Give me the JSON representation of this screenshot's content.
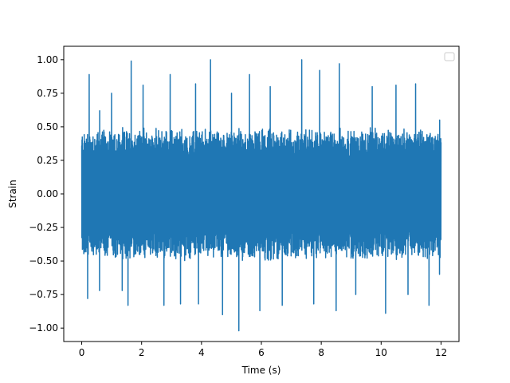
{
  "chart_data": {
    "type": "line",
    "title": "",
    "xlabel": "Time (s)",
    "ylabel": "Strain",
    "xlim": [
      -0.6,
      12.6
    ],
    "ylim": [
      -1.1,
      1.1
    ],
    "x_ticks": [
      0,
      2,
      4,
      6,
      8,
      10,
      12
    ],
    "x_tick_labels": [
      "0",
      "2",
      "4",
      "6",
      "8",
      "10",
      "12"
    ],
    "y_ticks": [
      -1.0,
      -0.75,
      -0.5,
      -0.25,
      0.0,
      0.25,
      0.5,
      0.75,
      1.0
    ],
    "y_tick_labels": [
      "−1.00",
      "−0.75",
      "−0.50",
      "−0.25",
      "0.00",
      "0.25",
      "0.50",
      "0.75",
      "1.00"
    ],
    "grid": false,
    "legend": {
      "placement": "upper-right",
      "entries": []
    },
    "series": [
      {
        "color": "#1f77b4",
        "x_start": 0.0,
        "x_end": 12.0,
        "typical_range": [
          -0.45,
          0.45
        ],
        "peaks": [
          {
            "x": 0.25,
            "y": 0.89
          },
          {
            "x": 0.2,
            "y": -0.78
          },
          {
            "x": 0.6,
            "y": 0.62
          },
          {
            "x": 0.6,
            "y": -0.72
          },
          {
            "x": 1.0,
            "y": 0.75
          },
          {
            "x": 1.35,
            "y": -0.72
          },
          {
            "x": 1.65,
            "y": 0.99
          },
          {
            "x": 1.55,
            "y": -0.83
          },
          {
            "x": 2.05,
            "y": 0.81
          },
          {
            "x": 2.75,
            "y": -0.83
          },
          {
            "x": 2.95,
            "y": 0.89
          },
          {
            "x": 3.3,
            "y": -0.82
          },
          {
            "x": 3.8,
            "y": 0.82
          },
          {
            "x": 3.9,
            "y": -0.82
          },
          {
            "x": 4.3,
            "y": 1.0
          },
          {
            "x": 4.7,
            "y": -0.9
          },
          {
            "x": 5.0,
            "y": 0.75
          },
          {
            "x": 5.25,
            "y": -1.02
          },
          {
            "x": 5.6,
            "y": 0.89
          },
          {
            "x": 5.95,
            "y": -0.87
          },
          {
            "x": 6.3,
            "y": 0.8
          },
          {
            "x": 6.7,
            "y": -0.83
          },
          {
            "x": 7.35,
            "y": 1.0
          },
          {
            "x": 7.75,
            "y": -0.82
          },
          {
            "x": 7.95,
            "y": 0.92
          },
          {
            "x": 8.5,
            "y": -0.87
          },
          {
            "x": 8.6,
            "y": 0.97
          },
          {
            "x": 9.15,
            "y": -0.75
          },
          {
            "x": 9.7,
            "y": 0.8
          },
          {
            "x": 10.15,
            "y": -0.89
          },
          {
            "x": 10.5,
            "y": 0.81
          },
          {
            "x": 10.9,
            "y": -0.75
          },
          {
            "x": 11.15,
            "y": 0.82
          },
          {
            "x": 11.6,
            "y": -0.83
          },
          {
            "x": 11.95,
            "y": 0.55
          },
          {
            "x": 11.95,
            "y": -0.6
          }
        ]
      }
    ]
  }
}
